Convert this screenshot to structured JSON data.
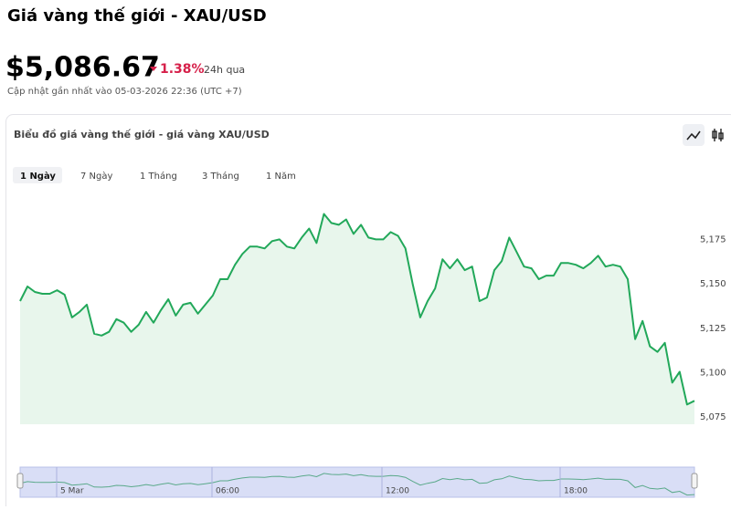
{
  "header": {
    "title": "Giá vàng thế giới - XAU/USD",
    "price": "$5,086.67",
    "change": "1.38%",
    "change_period": "24h qua",
    "updated": "Cập nhật gần nhất vào 05-03-2026 22:36 (UTC +7)"
  },
  "card": {
    "title": "Biểu đồ giá vàng thế giới - giá vàng XAU/USD",
    "tabs": [
      "1 Ngày",
      "7 Ngày",
      "1 Tháng",
      "3 Tháng",
      "1 Năm"
    ]
  },
  "chart_data": {
    "type": "line",
    "color": "#22a85a",
    "area_color": "#e8f6ec",
    "values": [
      5140.3,
      5148.5,
      5145.4,
      5144.4,
      5144.4,
      5146.4,
      5143.9,
      5131.1,
      5134.2,
      5138.3,
      5121.9,
      5120.9,
      5123.0,
      5130.1,
      5128.1,
      5123.0,
      5127.0,
      5134.2,
      5128.1,
      5135.2,
      5141.3,
      5132.1,
      5138.3,
      5139.3,
      5133.2,
      5138.3,
      5143.4,
      5152.6,
      5152.6,
      5160.7,
      5166.8,
      5170.9,
      5170.9,
      5169.9,
      5174.0,
      5175.0,
      5170.9,
      5169.9,
      5176.0,
      5181.1,
      5173.0,
      5189.3,
      5184.2,
      5183.2,
      5186.2,
      5178.1,
      5183.2,
      5176.0,
      5175.0,
      5175.0,
      5179.1,
      5177.0,
      5169.9,
      5149.5,
      5131.1,
      5140.3,
      5147.4,
      5163.8,
      5158.7,
      5163.8,
      5157.7,
      5159.7,
      5140.3,
      5142.3,
      5157.7,
      5162.8,
      5176.0,
      5167.9,
      5159.7,
      5158.7,
      5152.6,
      5154.6,
      5154.6,
      5161.7,
      5161.7,
      5160.7,
      5158.7,
      5161.7,
      5165.8,
      5159.7,
      5160.7,
      5159.7,
      5152.6,
      5118.9,
      5129.1,
      5114.8,
      5111.7,
      5116.8,
      5094.4,
      5100.5,
      5082.1,
      5084.2
    ],
    "ylim": [
      5071,
      5207
    ],
    "yticks": [
      {
        "value": 5075,
        "label": "5,075"
      },
      {
        "value": 5100,
        "label": "5,100"
      },
      {
        "value": 5125,
        "label": "5,125"
      },
      {
        "value": 5150,
        "label": "5,150"
      },
      {
        "value": 5175,
        "label": "5,175"
      }
    ],
    "navigator_labels": [
      "5 Mar",
      "06:00",
      "12:00",
      "18:00"
    ]
  }
}
